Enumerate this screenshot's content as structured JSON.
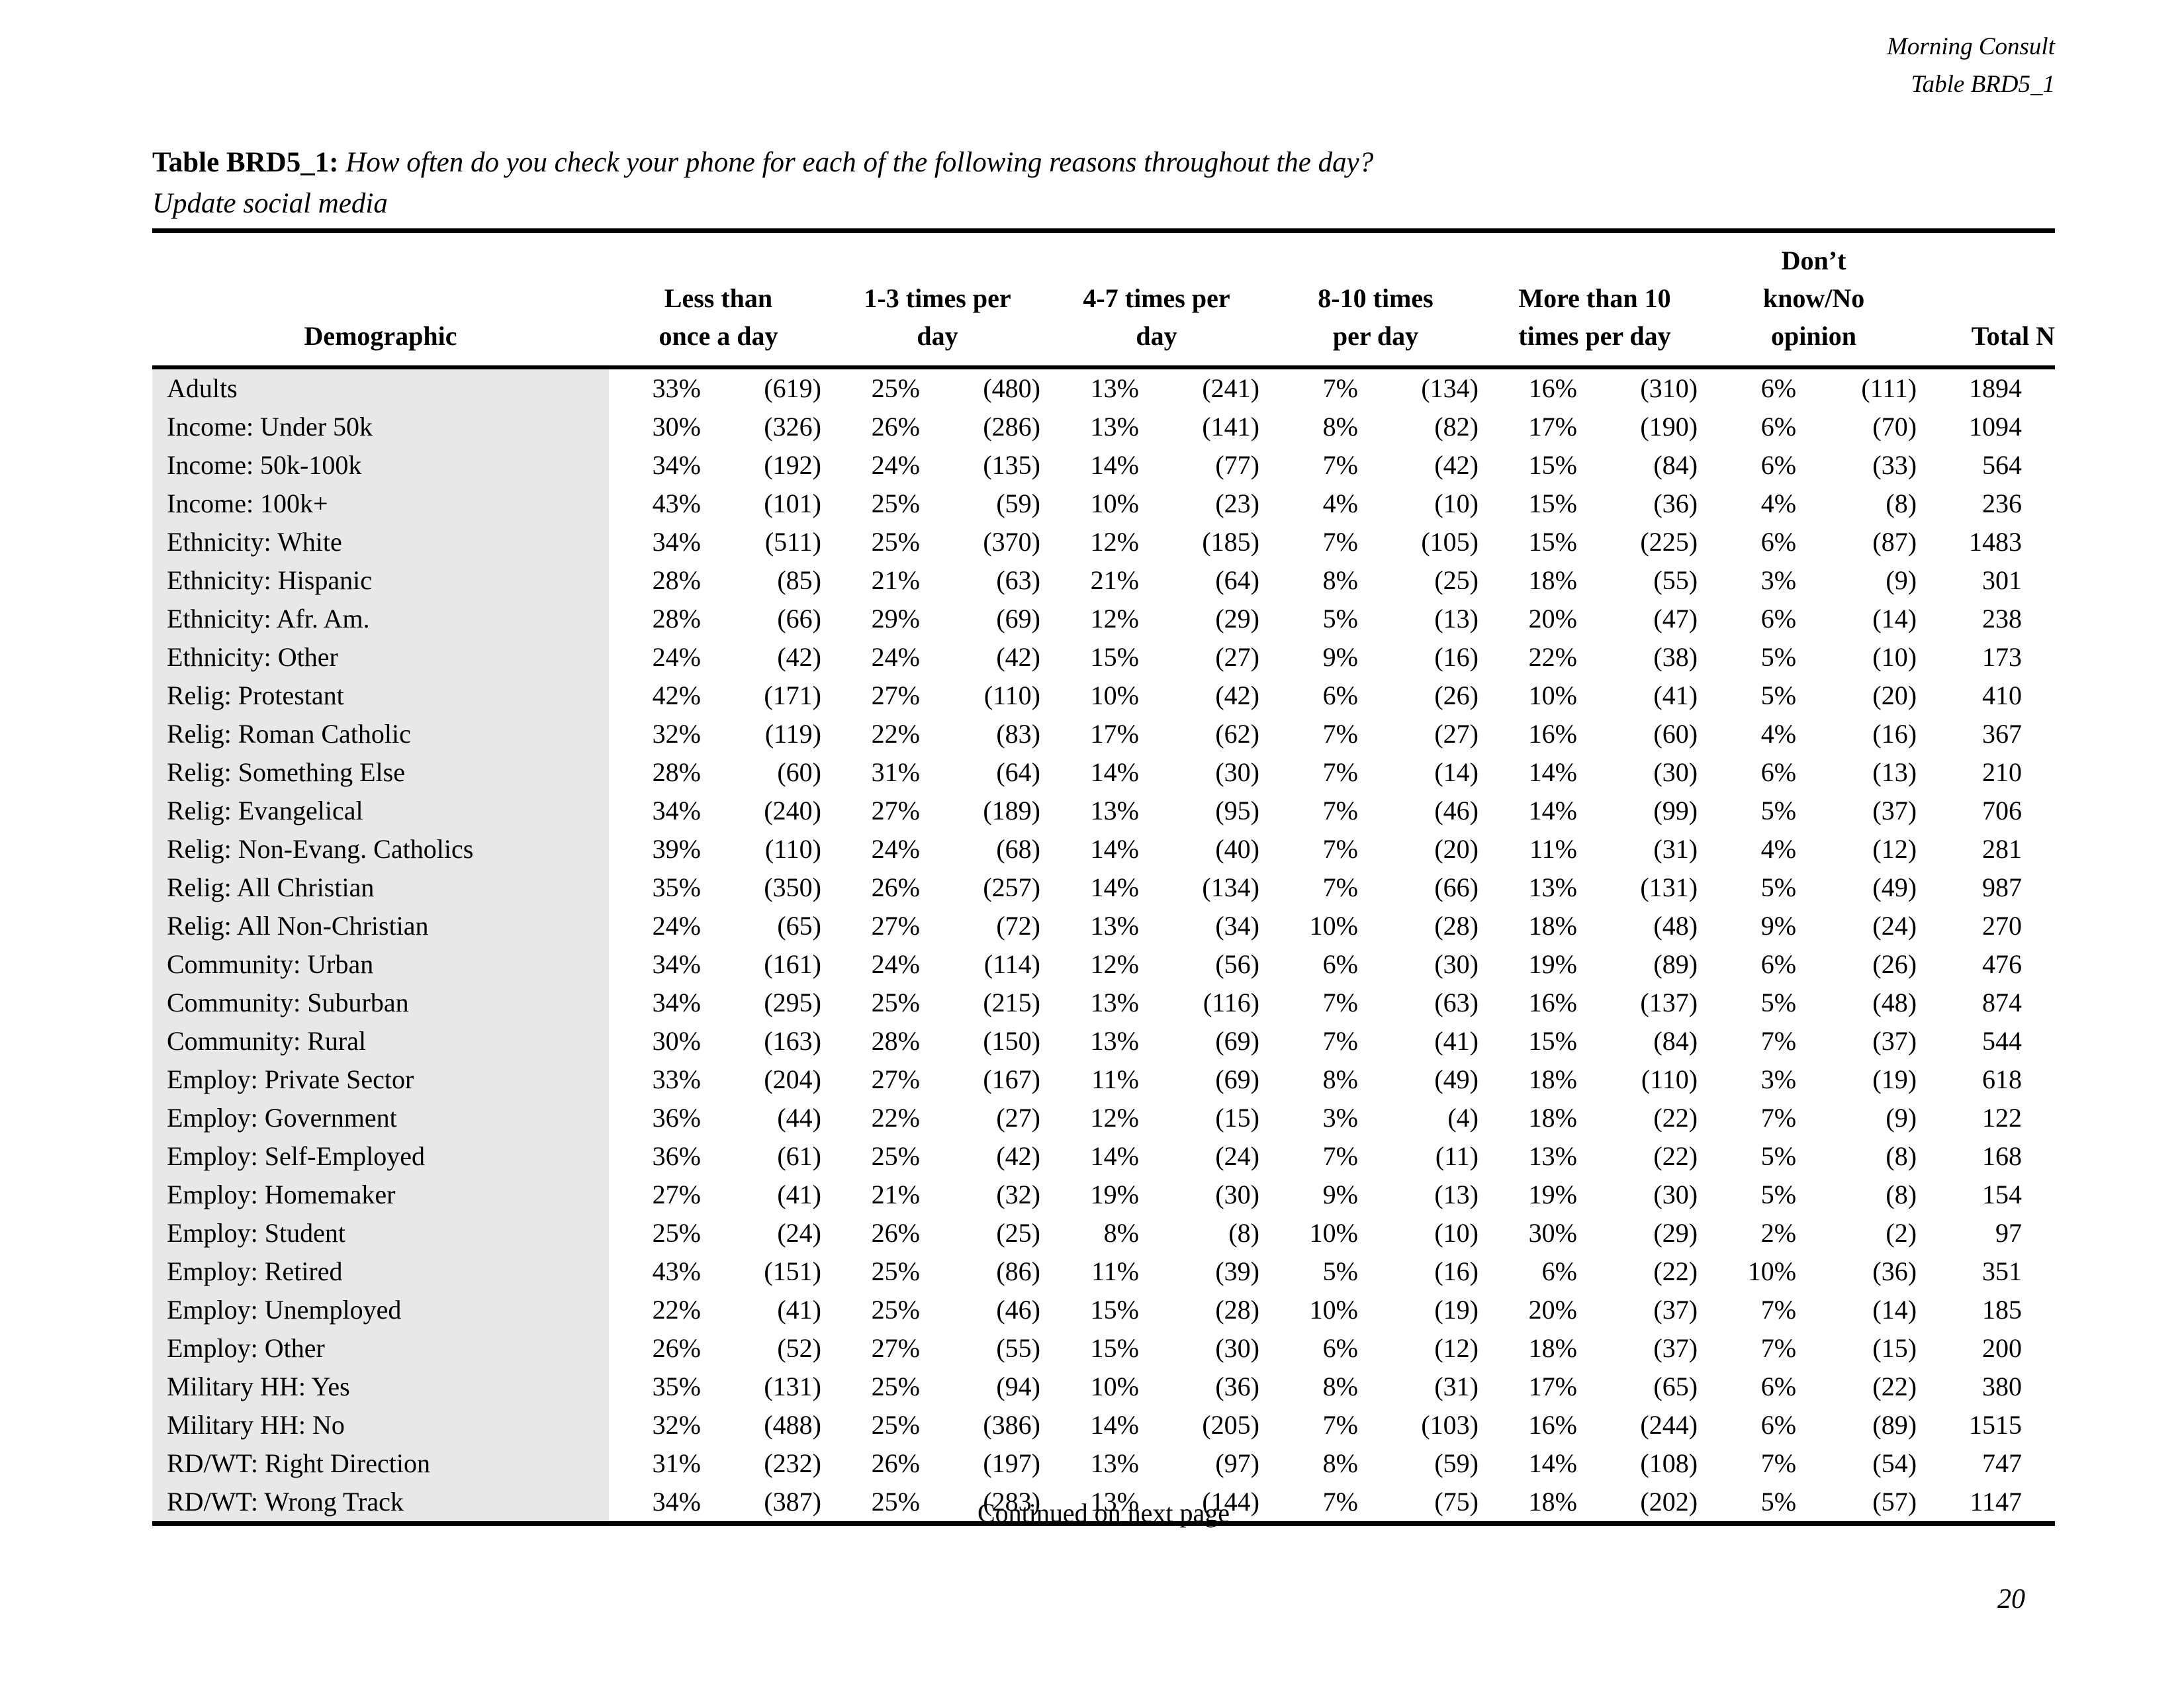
{
  "colors": {
    "row_label_shade": "#e8e8e8",
    "rule": "#000000"
  },
  "page_header": {
    "org": "Morning Consult",
    "table_ref": "Table BRD5_1"
  },
  "title": {
    "label": "Table BRD5_1:",
    "question": "How often do you check your phone for each of the following reasons throughout the day?",
    "subtitle": "Update social media"
  },
  "table": {
    "demographic_header": "Demographic",
    "group_headers": [
      "Less than\nonce a day",
      "1-3 times per\nday",
      "4-7 times per\nday",
      "8-10 times\nper day",
      "More than 10\ntimes per day",
      "Don’t\nknow/No\nopinion"
    ],
    "total_header": "Total N",
    "rows": [
      {
        "label": "Adults",
        "values": [
          "33%",
          "(619)",
          "25%",
          "(480)",
          "13%",
          "(241)",
          "7%",
          "(134)",
          "16%",
          "(310)",
          "6%",
          "(111)"
        ],
        "total": "1894"
      },
      {
        "label": "Income: Under 50k",
        "values": [
          "30%",
          "(326)",
          "26%",
          "(286)",
          "13%",
          "(141)",
          "8%",
          "(82)",
          "17%",
          "(190)",
          "6%",
          "(70)"
        ],
        "total": "1094"
      },
      {
        "label": "Income: 50k-100k",
        "values": [
          "34%",
          "(192)",
          "24%",
          "(135)",
          "14%",
          "(77)",
          "7%",
          "(42)",
          "15%",
          "(84)",
          "6%",
          "(33)"
        ],
        "total": "564"
      },
      {
        "label": "Income: 100k+",
        "values": [
          "43%",
          "(101)",
          "25%",
          "(59)",
          "10%",
          "(23)",
          "4%",
          "(10)",
          "15%",
          "(36)",
          "4%",
          "(8)"
        ],
        "total": "236"
      },
      {
        "label": "Ethnicity: White",
        "values": [
          "34%",
          "(511)",
          "25%",
          "(370)",
          "12%",
          "(185)",
          "7%",
          "(105)",
          "15%",
          "(225)",
          "6%",
          "(87)"
        ],
        "total": "1483"
      },
      {
        "label": "Ethnicity: Hispanic",
        "values": [
          "28%",
          "(85)",
          "21%",
          "(63)",
          "21%",
          "(64)",
          "8%",
          "(25)",
          "18%",
          "(55)",
          "3%",
          "(9)"
        ],
        "total": "301"
      },
      {
        "label": "Ethnicity: Afr. Am.",
        "values": [
          "28%",
          "(66)",
          "29%",
          "(69)",
          "12%",
          "(29)",
          "5%",
          "(13)",
          "20%",
          "(47)",
          "6%",
          "(14)"
        ],
        "total": "238"
      },
      {
        "label": "Ethnicity: Other",
        "values": [
          "24%",
          "(42)",
          "24%",
          "(42)",
          "15%",
          "(27)",
          "9%",
          "(16)",
          "22%",
          "(38)",
          "5%",
          "(10)"
        ],
        "total": "173"
      },
      {
        "label": "Relig: Protestant",
        "values": [
          "42%",
          "(171)",
          "27%",
          "(110)",
          "10%",
          "(42)",
          "6%",
          "(26)",
          "10%",
          "(41)",
          "5%",
          "(20)"
        ],
        "total": "410"
      },
      {
        "label": "Relig: Roman Catholic",
        "values": [
          "32%",
          "(119)",
          "22%",
          "(83)",
          "17%",
          "(62)",
          "7%",
          "(27)",
          "16%",
          "(60)",
          "4%",
          "(16)"
        ],
        "total": "367"
      },
      {
        "label": "Relig: Something Else",
        "values": [
          "28%",
          "(60)",
          "31%",
          "(64)",
          "14%",
          "(30)",
          "7%",
          "(14)",
          "14%",
          "(30)",
          "6%",
          "(13)"
        ],
        "total": "210"
      },
      {
        "label": "Relig: Evangelical",
        "values": [
          "34%",
          "(240)",
          "27%",
          "(189)",
          "13%",
          "(95)",
          "7%",
          "(46)",
          "14%",
          "(99)",
          "5%",
          "(37)"
        ],
        "total": "706"
      },
      {
        "label": "Relig: Non-Evang. Catholics",
        "values": [
          "39%",
          "(110)",
          "24%",
          "(68)",
          "14%",
          "(40)",
          "7%",
          "(20)",
          "11%",
          "(31)",
          "4%",
          "(12)"
        ],
        "total": "281"
      },
      {
        "label": "Relig: All Christian",
        "values": [
          "35%",
          "(350)",
          "26%",
          "(257)",
          "14%",
          "(134)",
          "7%",
          "(66)",
          "13%",
          "(131)",
          "5%",
          "(49)"
        ],
        "total": "987"
      },
      {
        "label": "Relig: All Non-Christian",
        "values": [
          "24%",
          "(65)",
          "27%",
          "(72)",
          "13%",
          "(34)",
          "10%",
          "(28)",
          "18%",
          "(48)",
          "9%",
          "(24)"
        ],
        "total": "270"
      },
      {
        "label": "Community: Urban",
        "values": [
          "34%",
          "(161)",
          "24%",
          "(114)",
          "12%",
          "(56)",
          "6%",
          "(30)",
          "19%",
          "(89)",
          "6%",
          "(26)"
        ],
        "total": "476"
      },
      {
        "label": "Community: Suburban",
        "values": [
          "34%",
          "(295)",
          "25%",
          "(215)",
          "13%",
          "(116)",
          "7%",
          "(63)",
          "16%",
          "(137)",
          "5%",
          "(48)"
        ],
        "total": "874"
      },
      {
        "label": "Community: Rural",
        "values": [
          "30%",
          "(163)",
          "28%",
          "(150)",
          "13%",
          "(69)",
          "7%",
          "(41)",
          "15%",
          "(84)",
          "7%",
          "(37)"
        ],
        "total": "544"
      },
      {
        "label": "Employ: Private Sector",
        "values": [
          "33%",
          "(204)",
          "27%",
          "(167)",
          "11%",
          "(69)",
          "8%",
          "(49)",
          "18%",
          "(110)",
          "3%",
          "(19)"
        ],
        "total": "618"
      },
      {
        "label": "Employ: Government",
        "values": [
          "36%",
          "(44)",
          "22%",
          "(27)",
          "12%",
          "(15)",
          "3%",
          "(4)",
          "18%",
          "(22)",
          "7%",
          "(9)"
        ],
        "total": "122"
      },
      {
        "label": "Employ: Self-Employed",
        "values": [
          "36%",
          "(61)",
          "25%",
          "(42)",
          "14%",
          "(24)",
          "7%",
          "(11)",
          "13%",
          "(22)",
          "5%",
          "(8)"
        ],
        "total": "168"
      },
      {
        "label": "Employ: Homemaker",
        "values": [
          "27%",
          "(41)",
          "21%",
          "(32)",
          "19%",
          "(30)",
          "9%",
          "(13)",
          "19%",
          "(30)",
          "5%",
          "(8)"
        ],
        "total": "154"
      },
      {
        "label": "Employ: Student",
        "values": [
          "25%",
          "(24)",
          "26%",
          "(25)",
          "8%",
          "(8)",
          "10%",
          "(10)",
          "30%",
          "(29)",
          "2%",
          "(2)"
        ],
        "total": "97"
      },
      {
        "label": "Employ: Retired",
        "values": [
          "43%",
          "(151)",
          "25%",
          "(86)",
          "11%",
          "(39)",
          "5%",
          "(16)",
          "6%",
          "(22)",
          "10%",
          "(36)"
        ],
        "total": "351"
      },
      {
        "label": "Employ: Unemployed",
        "values": [
          "22%",
          "(41)",
          "25%",
          "(46)",
          "15%",
          "(28)",
          "10%",
          "(19)",
          "20%",
          "(37)",
          "7%",
          "(14)"
        ],
        "total": "185"
      },
      {
        "label": "Employ: Other",
        "values": [
          "26%",
          "(52)",
          "27%",
          "(55)",
          "15%",
          "(30)",
          "6%",
          "(12)",
          "18%",
          "(37)",
          "7%",
          "(15)"
        ],
        "total": "200"
      },
      {
        "label": "Military HH: Yes",
        "values": [
          "35%",
          "(131)",
          "25%",
          "(94)",
          "10%",
          "(36)",
          "8%",
          "(31)",
          "17%",
          "(65)",
          "6%",
          "(22)"
        ],
        "total": "380"
      },
      {
        "label": "Military HH: No",
        "values": [
          "32%",
          "(488)",
          "25%",
          "(386)",
          "14%",
          "(205)",
          "7%",
          "(103)",
          "16%",
          "(244)",
          "6%",
          "(89)"
        ],
        "total": "1515"
      },
      {
        "label": "RD/WT: Right Direction",
        "values": [
          "31%",
          "(232)",
          "26%",
          "(197)",
          "13%",
          "(97)",
          "8%",
          "(59)",
          "14%",
          "(108)",
          "7%",
          "(54)"
        ],
        "total": "747"
      },
      {
        "label": "RD/WT: Wrong Track",
        "values": [
          "34%",
          "(387)",
          "25%",
          "(283)",
          "13%",
          "(144)",
          "7%",
          "(75)",
          "18%",
          "(202)",
          "5%",
          "(57)"
        ],
        "total": "1147"
      }
    ]
  },
  "footer": {
    "continued": "Continued on next page",
    "page_number": "20"
  }
}
